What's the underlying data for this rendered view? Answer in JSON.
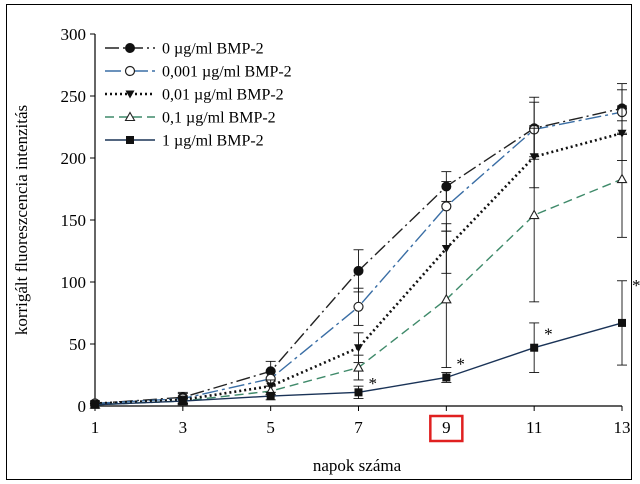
{
  "chart_data": {
    "type": "line",
    "title": "",
    "xlabel": "napok száma",
    "ylabel": "korrigált fluoreszcencia intenzitás",
    "x": [
      1,
      3,
      5,
      7,
      9,
      11,
      13
    ],
    "xticks": [
      "1",
      "3",
      "5",
      "7",
      "9",
      "11",
      "13"
    ],
    "yticks": [
      "0",
      "50",
      "100",
      "150",
      "200",
      "250",
      "300"
    ],
    "xlim": [
      1,
      13
    ],
    "ylim": [
      0,
      300
    ],
    "grid": false,
    "legend_position": "top-left",
    "highlighted_tick": "9",
    "highlight_color": "#e02020",
    "series": [
      {
        "name": "0 µg/ml BMP-2",
        "color": "#222222",
        "dash": "dash-dot",
        "marker": "filled-circle",
        "values": [
          2,
          7,
          28,
          109,
          177,
          224,
          240
        ],
        "errors": [
          2,
          4,
          8,
          17,
          12,
          25,
          20
        ]
      },
      {
        "name": "0,001 µg/ml BMP-2",
        "color": "#3a6ea5",
        "dash": "long-dash-dot",
        "marker": "open-circle",
        "values": [
          2,
          6,
          22,
          80,
          161,
          223,
          237
        ],
        "errors": [
          2,
          4,
          6,
          15,
          20,
          22,
          18
        ]
      },
      {
        "name": "0,01 µg/ml BMP-2",
        "color": "#111111",
        "dash": "dotted",
        "marker": "filled-triangle-down",
        "values": [
          2,
          5,
          16,
          47,
          127,
          201,
          220
        ],
        "errors": [
          2,
          3,
          5,
          12,
          20,
          25,
          22
        ]
      },
      {
        "name": "0,1 µg/ml BMP-2",
        "color": "#3f8a6a",
        "dash": "dashed",
        "marker": "open-triangle-up",
        "values": [
          1,
          4,
          12,
          31,
          86,
          154,
          183
        ],
        "errors": [
          1,
          3,
          4,
          10,
          55,
          70,
          47
        ]
      },
      {
        "name": "1 µg/ml BMP-2",
        "color": "#1a3357",
        "dash": "solid",
        "marker": "filled-square",
        "values": [
          1,
          4,
          8,
          11,
          23,
          47,
          67
        ],
        "errors": [
          1,
          2,
          3,
          5,
          4,
          20,
          34
        ]
      }
    ],
    "significance": [
      {
        "x": 7,
        "label": "*"
      },
      {
        "x": 9,
        "label": "*"
      },
      {
        "x": 11,
        "label": "*"
      },
      {
        "x": 13,
        "label": "*"
      }
    ]
  }
}
